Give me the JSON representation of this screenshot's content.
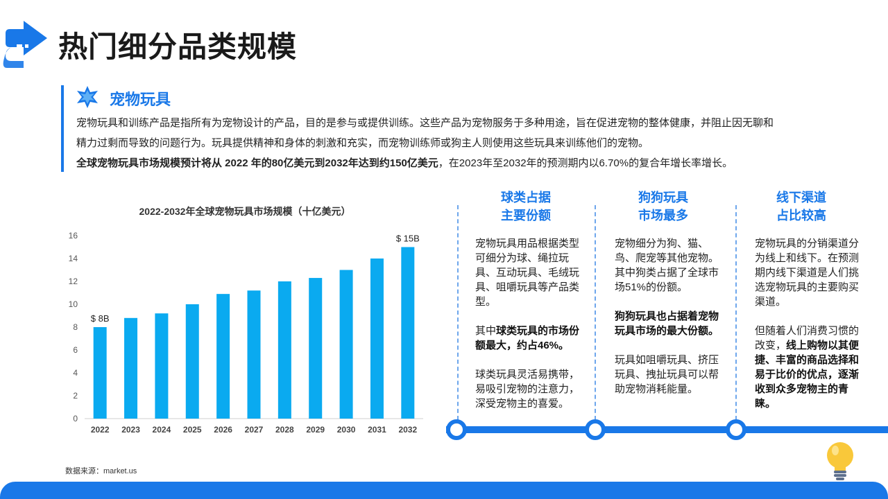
{
  "page": {
    "title": "热门细分品类规模",
    "colors": {
      "accent": "#1978e8",
      "bar": "#0aaaf0",
      "bulb": "#f9c83a"
    },
    "icons": {
      "logo": "arrow-logo-icon",
      "star": "star-icon",
      "bulb": "lightbulb-icon"
    }
  },
  "intro": {
    "heading": "宠物玩具",
    "line1": "宠物玩具和训练产品是指所有为宠物设计的产品，目的是参与或提供训练。这些产品为宠物服务于多种用途，旨在促进宠物的整体健康，并阻止因无聊和",
    "line2": "精力过剩而导致的问题行为。玩具提供精神和身体的刺激和充实，而宠物训练师或狗主人则使用这些玩具来训练他们的宠物。",
    "line3_bold": "全球宠物玩具市场规模预计将从 2022 年的80亿美元到2032年达到约150亿美元",
    "line3_rest": "，在2023年至2032年的预测期内以6.70%的复合年增长率增长。"
  },
  "chart_data": {
    "type": "bar",
    "title": "2022-2032年全球宠物玩具市场规模（十亿美元）",
    "xlabel": "",
    "ylabel": "",
    "categories": [
      "2022",
      "2023",
      "2024",
      "2025",
      "2026",
      "2027",
      "2028",
      "2029",
      "2030",
      "2031",
      "2032"
    ],
    "values": [
      8,
      8.8,
      9.2,
      10,
      10.9,
      11.2,
      12,
      12.3,
      13,
      14,
      15
    ],
    "ylim": [
      0,
      16
    ],
    "yticks": [
      0,
      2,
      4,
      6,
      8,
      10,
      12,
      14,
      16
    ],
    "grid": false,
    "data_labels": [
      {
        "index": 0,
        "text": "$ 8B"
      },
      {
        "index": 10,
        "text": "$ 15B"
      }
    ]
  },
  "source": "数据来源：market.us",
  "columns": [
    {
      "title_line1": "球类占据",
      "title_line2": "主要份额",
      "p1": "宠物玩具用品根据类型可细分为球、绳拉玩具、互动玩具、毛绒玩具、咀嚼玩具等产品类型。",
      "p2_normal": "其中",
      "p2_bold": "球类玩具的市场份额最大，约占46%。",
      "p3": "球类玩具灵活易携带，易吸引宠物的注意力，深受宠物主的喜爱。"
    },
    {
      "title_line1": "狗狗玩具",
      "title_line2": "市场最多",
      "p1": "宠物细分为狗、猫、鸟、爬宠等其他宠物。其中狗类占据了全球市场51%的份额。",
      "p2_bold": "狗狗玩具也占据着宠物玩具市场的最大份额。",
      "p3": "玩具如咀嚼玩具、挤压玩具、拽扯玩具可以帮助宠物消耗能量。"
    },
    {
      "title_line1": "线下渠道",
      "title_line2": "占比较高",
      "p1": "宠物玩具的分销渠道分为线上和线下。在预测期内线下渠道是人们挑选宠物玩具的主要购买渠道。",
      "p2_normal": "但随着人们消费习惯的改变，",
      "p2_bold": "线上购物以其便捷、丰富的商品选择和易于比价的优点，逐渐收到众多宠物主的青睐。"
    }
  ]
}
